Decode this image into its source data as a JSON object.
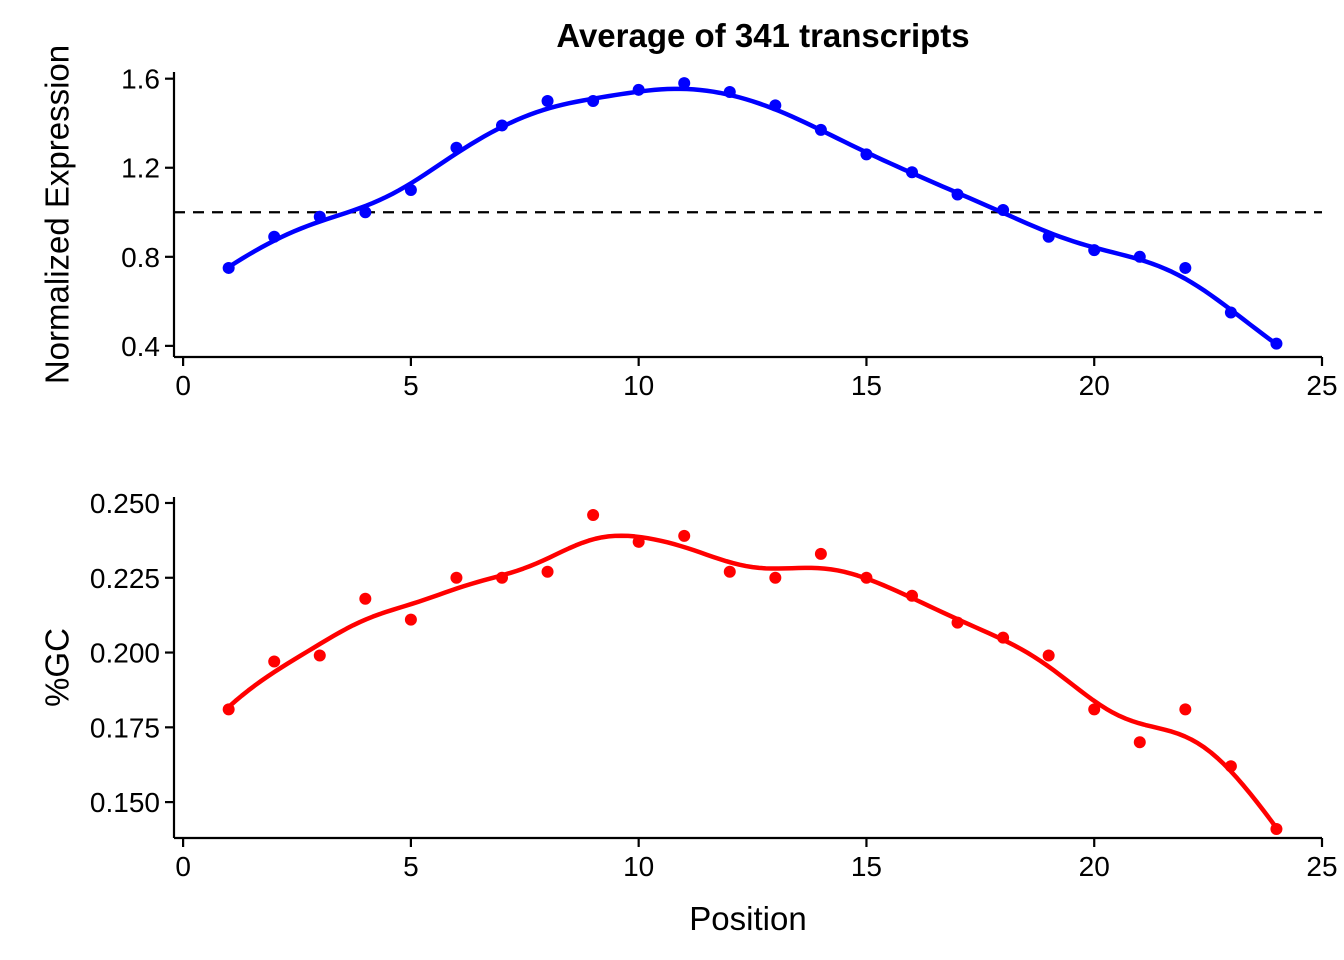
{
  "chart_data": [
    {
      "type": "scatter",
      "title": "Average of 341 transcripts",
      "xlabel": "",
      "ylabel": "Normalized Expression",
      "xlim": [
        -0.2,
        25
      ],
      "ylim": [
        0.35,
        1.63
      ],
      "x_ticks": [
        "0",
        "5",
        "10",
        "15",
        "20",
        "25"
      ],
      "y_ticks": [
        "0.4",
        "0.8",
        "1.2",
        "1.6"
      ],
      "x_tick_values": [
        0,
        5,
        10,
        15,
        20,
        25
      ],
      "y_tick_values": [
        0.4,
        0.8,
        1.2,
        1.6
      ],
      "reference_line": {
        "y": 1.0,
        "style": "dashed",
        "color": "#000000"
      },
      "series": [
        {
          "color": "#0000ff",
          "smooth": true,
          "x": [
            1,
            2,
            3,
            4,
            5,
            6,
            7,
            8,
            9,
            10,
            11,
            12,
            13,
            14,
            15,
            16,
            17,
            18,
            19,
            20,
            21,
            22,
            23,
            24
          ],
          "y": [
            0.75,
            0.89,
            0.98,
            1.0,
            1.1,
            1.29,
            1.39,
            1.5,
            1.5,
            1.55,
            1.58,
            1.54,
            1.48,
            1.37,
            1.26,
            1.18,
            1.08,
            1.01,
            0.89,
            0.83,
            0.8,
            0.75,
            0.55,
            0.41
          ]
        }
      ]
    },
    {
      "type": "scatter",
      "title": "",
      "xlabel": "Position",
      "ylabel": "%GC",
      "xlim": [
        -0.2,
        25
      ],
      "ylim": [
        0.138,
        0.252
      ],
      "x_ticks": [
        "0",
        "5",
        "10",
        "15",
        "20",
        "25"
      ],
      "y_ticks": [
        "0.150",
        "0.175",
        "0.200",
        "0.225",
        "0.250"
      ],
      "x_tick_values": [
        0,
        5,
        10,
        15,
        20,
        25
      ],
      "y_tick_values": [
        0.15,
        0.175,
        0.2,
        0.225,
        0.25
      ],
      "series": [
        {
          "color": "#ff0000",
          "smooth": true,
          "x": [
            1,
            2,
            3,
            4,
            5,
            6,
            7,
            8,
            9,
            10,
            11,
            12,
            13,
            14,
            15,
            16,
            17,
            18,
            19,
            20,
            21,
            22,
            23,
            24
          ],
          "y": [
            0.181,
            0.197,
            0.199,
            0.218,
            0.211,
            0.225,
            0.225,
            0.227,
            0.246,
            0.237,
            0.239,
            0.227,
            0.225,
            0.233,
            0.225,
            0.219,
            0.21,
            0.205,
            0.199,
            0.181,
            0.17,
            0.181,
            0.162,
            0.141
          ]
        }
      ]
    }
  ]
}
